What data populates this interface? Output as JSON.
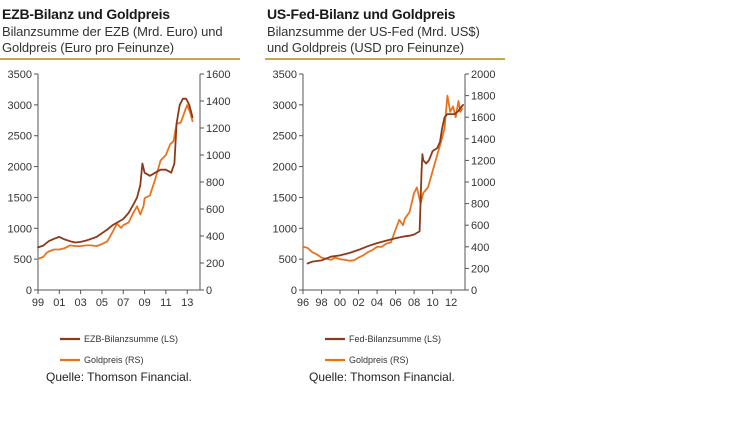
{
  "chart_data": [
    {
      "type": "line",
      "title": "EZB-Bilanz und Goldpreis",
      "subtitle_line1": "Bilanzsumme der EZB (Mrd. Euro) und",
      "subtitle_line2": "Goldpreis (Euro pro Feinunze)",
      "x_ticks": [
        "99",
        "01",
        "03",
        "05",
        "07",
        "09",
        "11",
        "13"
      ],
      "x_tick_values": [
        1999,
        2001,
        2003,
        2005,
        2007,
        2009,
        2011,
        2013
      ],
      "xlim": [
        1999,
        2014.2
      ],
      "y_left_ticks": [
        "0",
        "500",
        "1000",
        "1500",
        "2000",
        "2500",
        "3000",
        "3500"
      ],
      "ylim_left": [
        0,
        3500
      ],
      "y_right_ticks": [
        "0",
        "200",
        "400",
        "600",
        "800",
        "1000",
        "1200",
        "1400",
        "1600"
      ],
      "ylim_right": [
        0,
        1600
      ],
      "legend": [
        "EZB-Bilanzsumme (LS)",
        "Goldpreis (RS)"
      ],
      "source": "Quelle: Thomson Financial.",
      "colors": {
        "series1": "#8b3a1a",
        "series2": "#e8731e"
      },
      "series": [
        {
          "name": "EZB-Bilanzsumme (LS)",
          "axis": "left",
          "x": [
            1999.0,
            1999.5,
            2000.0,
            2000.5,
            2001.0,
            2001.5,
            2002.0,
            2002.5,
            2003.0,
            2003.5,
            2004.0,
            2004.5,
            2005.0,
            2005.5,
            2006.0,
            2006.5,
            2007.0,
            2007.5,
            2008.0,
            2008.3,
            2008.6,
            2008.8,
            2009.0,
            2009.5,
            2010.0,
            2010.5,
            2011.0,
            2011.5,
            2011.8,
            2012.0,
            2012.3,
            2012.6,
            2012.9,
            2013.2,
            2013.5
          ],
          "values": [
            690,
            720,
            790,
            830,
            860,
            820,
            790,
            770,
            780,
            800,
            830,
            860,
            920,
            980,
            1050,
            1100,
            1150,
            1250,
            1400,
            1500,
            1700,
            2050,
            1900,
            1850,
            1900,
            1950,
            1950,
            1900,
            2050,
            2700,
            3000,
            3100,
            3100,
            3000,
            2800
          ]
        },
        {
          "name": "Goldpreis (RS)",
          "axis": "right",
          "x": [
            1999.0,
            1999.5,
            1999.8,
            2000.0,
            2000.5,
            2001.0,
            2001.5,
            2002.0,
            2002.5,
            2003.0,
            2003.5,
            2004.0,
            2004.5,
            2005.0,
            2005.5,
            2006.0,
            2006.4,
            2006.8,
            2007.0,
            2007.5,
            2008.0,
            2008.3,
            2008.6,
            2008.9,
            2009.0,
            2009.5,
            2010.0,
            2010.5,
            2011.0,
            2011.4,
            2011.7,
            2012.0,
            2012.4,
            2012.8,
            2013.0,
            2013.3,
            2013.5
          ],
          "values": [
            230,
            245,
            275,
            285,
            300,
            300,
            310,
            330,
            325,
            325,
            330,
            330,
            325,
            340,
            360,
            430,
            490,
            460,
            480,
            500,
            580,
            620,
            560,
            620,
            680,
            700,
            820,
            960,
            1000,
            1080,
            1100,
            1230,
            1240,
            1330,
            1370,
            1310,
            1250
          ]
        }
      ]
    },
    {
      "type": "line",
      "title": "US-Fed-Bilanz und Goldpreis",
      "subtitle_line1": "Bilanzsumme der US-Fed (Mrd. US$)",
      "subtitle_line2": "und Goldpreis (USD pro Feinunze)",
      "x_ticks": [
        "96",
        "98",
        "00",
        "02",
        "04",
        "06",
        "08",
        "10",
        "12"
      ],
      "x_tick_values": [
        1996,
        1998,
        2000,
        2002,
        2004,
        2006,
        2008,
        2010,
        2012
      ],
      "xlim": [
        1996,
        2013.5
      ],
      "y_left_ticks": [
        "0",
        "500",
        "1000",
        "1500",
        "2000",
        "2500",
        "3000",
        "3500"
      ],
      "ylim_left": [
        0,
        3500
      ],
      "y_right_ticks": [
        "0",
        "200",
        "400",
        "600",
        "800",
        "1000",
        "1200",
        "1400",
        "1600",
        "1800",
        "2000"
      ],
      "ylim_right": [
        0,
        2000
      ],
      "legend": [
        "Fed-Bilanzsumme (LS)",
        "Goldpreis (RS)"
      ],
      "source": "Quelle: Thomson Financial.",
      "colors": {
        "series1": "#8b3a1a",
        "series2": "#e8731e"
      },
      "series": [
        {
          "name": "Fed-Bilanzsumme (LS)",
          "axis": "left",
          "x": [
            1996.5,
            1997.0,
            1998.0,
            1999.0,
            2000.0,
            2001.0,
            2002.0,
            2003.0,
            2004.0,
            2005.0,
            2006.0,
            2007.0,
            2007.5,
            2008.0,
            2008.6,
            2008.8,
            2008.9,
            2009.0,
            2009.3,
            2009.6,
            2010.0,
            2010.5,
            2010.8,
            2011.0,
            2011.3,
            2011.6,
            2012.0,
            2012.4,
            2012.8,
            2013.0,
            2013.3
          ],
          "values": [
            430,
            460,
            480,
            540,
            560,
            600,
            650,
            710,
            760,
            800,
            840,
            870,
            880,
            900,
            950,
            1900,
            2200,
            2100,
            2050,
            2100,
            2250,
            2300,
            2400,
            2600,
            2800,
            2850,
            2850,
            2850,
            2900,
            2950,
            3000
          ]
        },
        {
          "name": "Goldpreis (RS)",
          "axis": "right",
          "x": [
            1996.0,
            1996.5,
            1997.0,
            1997.5,
            1998.0,
            1998.5,
            1999.0,
            1999.5,
            2000.0,
            2000.5,
            2001.0,
            2001.5,
            2002.0,
            2002.5,
            2003.0,
            2003.5,
            2004.0,
            2004.5,
            2005.0,
            2005.5,
            2006.0,
            2006.4,
            2006.8,
            2007.0,
            2007.5,
            2008.0,
            2008.3,
            2008.7,
            2009.0,
            2009.5,
            2010.0,
            2010.5,
            2011.0,
            2011.3,
            2011.6,
            2011.9,
            2012.2,
            2012.5,
            2012.8,
            2013.0,
            2013.2
          ],
          "values": [
            400,
            390,
            350,
            330,
            300,
            290,
            280,
            300,
            285,
            280,
            270,
            275,
            300,
            320,
            350,
            370,
            400,
            400,
            430,
            440,
            560,
            650,
            600,
            660,
            720,
            900,
            950,
            800,
            900,
            950,
            1100,
            1250,
            1400,
            1500,
            1800,
            1650,
            1700,
            1600,
            1750,
            1650,
            1680
          ]
        }
      ]
    }
  ]
}
